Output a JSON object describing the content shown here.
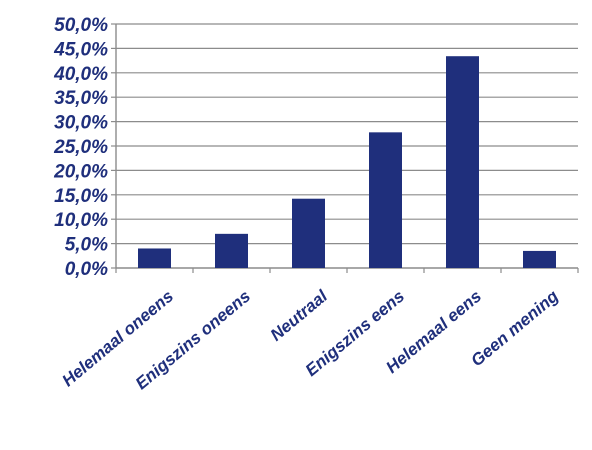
{
  "chart_data": {
    "type": "bar",
    "categories": [
      "Helemaal oneens",
      "Enigszins oneens",
      "Neutraal",
      "Enigszins eens",
      "Helemaal eens",
      "Geen mening"
    ],
    "values": [
      4.0,
      7.0,
      14.2,
      27.8,
      43.4,
      3.5
    ],
    "y_ticks": [
      "0,0%",
      "5,0%",
      "10,0%",
      "15,0%",
      "20,0%",
      "25,0%",
      "30,0%",
      "35,0%",
      "40,0%",
      "45,0%",
      "50,0%"
    ],
    "ylim": [
      0,
      50
    ],
    "grid": true,
    "title": "",
    "xlabel": "",
    "ylabel": "",
    "colors": {
      "bar": "#1f2f7c",
      "text": "#1f2f7c",
      "grid": "#8c8c8c",
      "axis": "#8c8c8c"
    }
  }
}
